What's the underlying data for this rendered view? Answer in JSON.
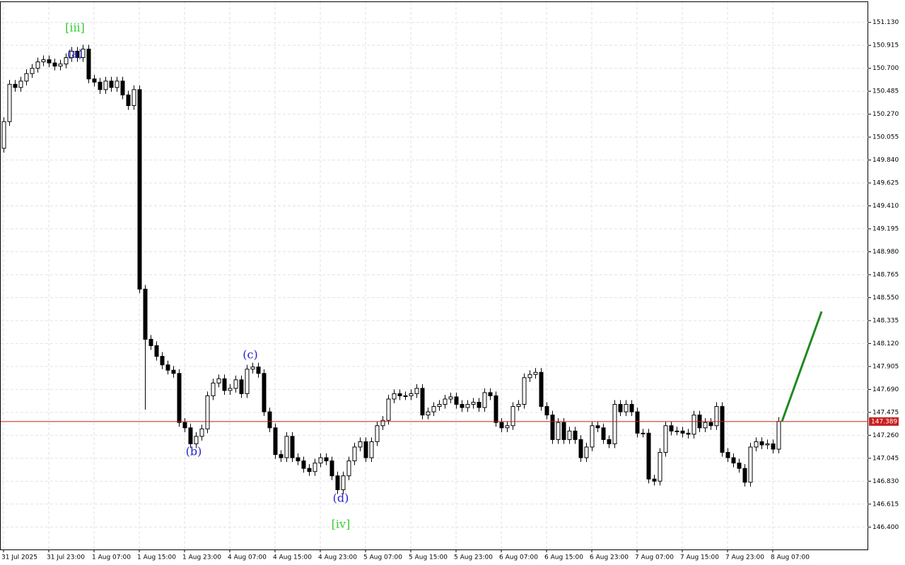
{
  "chart_data": {
    "type": "candlestick",
    "categories": [
      "31 Jul 2025",
      null,
      null,
      null,
      null,
      null,
      null,
      null,
      "31 Jul 23:00",
      null,
      null,
      null,
      null,
      null,
      null,
      null,
      "1 Aug 07:00",
      null,
      null,
      null,
      null,
      null,
      null,
      null,
      "1 Aug 15:00",
      null,
      null,
      null,
      null,
      null,
      null,
      null,
      "1 Aug 23:00",
      null,
      null,
      null,
      null,
      null,
      null,
      null,
      "4 Aug 07:00",
      null,
      null,
      null,
      null,
      null,
      null,
      null,
      "4 Aug 15:00",
      null,
      null,
      null,
      null,
      null,
      null,
      null,
      "4 Aug 23:00",
      null,
      null,
      null,
      null,
      null,
      null,
      null,
      "5 Aug 07:00",
      null,
      null,
      null,
      null,
      null,
      null,
      null,
      "5 Aug 15:00",
      null,
      null,
      null,
      null,
      null,
      null,
      null,
      "5 Aug 23:00",
      null,
      null,
      null,
      null,
      null,
      null,
      null,
      "6 Aug 07:00",
      null,
      null,
      null,
      null,
      null,
      null,
      null,
      "6 Aug 15:00",
      null,
      null,
      null,
      null,
      null,
      null,
      null,
      "6 Aug 23:00",
      null,
      null,
      null,
      null,
      null,
      null,
      null,
      "7 Aug 07:00",
      null,
      null,
      null,
      null,
      null,
      null,
      null,
      "7 Aug 15:00",
      null,
      null,
      null,
      null,
      null,
      null,
      null,
      "7 Aug 23:00",
      null,
      null,
      null,
      null,
      null,
      null,
      null,
      "8 Aug 07:00",
      null
    ],
    "open": [
      149.95,
      150.2,
      150.55,
      150.52,
      150.58,
      150.65,
      150.7,
      150.76,
      150.78,
      150.75,
      150.72,
      150.74,
      150.8,
      150.86,
      150.8,
      150.88,
      150.6,
      150.57,
      150.5,
      150.58,
      150.52,
      150.58,
      150.45,
      150.35,
      150.5,
      148.63,
      148.16,
      148.1,
      148.0,
      147.92,
      147.87,
      147.84,
      147.38,
      147.33,
      147.18,
      147.25,
      147.32,
      147.63,
      147.75,
      147.79,
      147.68,
      147.7,
      147.78,
      147.65,
      147.88,
      147.9,
      147.84,
      147.48,
      147.33,
      147.08,
      147.05,
      147.25,
      147.05,
      147.02,
      146.95,
      146.92,
      147.0,
      147.05,
      147.02,
      146.88,
      146.75,
      146.88,
      147.02,
      147.15,
      147.2,
      147.05,
      147.2,
      147.35,
      147.4,
      147.6,
      147.65,
      147.63,
      147.63,
      147.65,
      147.7,
      147.45,
      147.48,
      147.53,
      147.55,
      147.6,
      147.62,
      147.55,
      147.52,
      147.55,
      147.57,
      147.52,
      147.66,
      147.63,
      147.38,
      147.33,
      147.35,
      147.53,
      147.55,
      147.8,
      147.83,
      147.85,
      147.53,
      147.45,
      147.22,
      147.38,
      147.22,
      147.3,
      147.22,
      147.05,
      147.15,
      147.35,
      147.33,
      147.22,
      147.18,
      147.55,
      147.48,
      147.55,
      147.48,
      147.28,
      147.28,
      146.85,
      146.83,
      147.1,
      147.35,
      147.3,
      147.3,
      147.28,
      147.27,
      147.45,
      147.33,
      147.38,
      147.35,
      147.53,
      147.1,
      147.05,
      147.0,
      146.95,
      146.82,
      147.15,
      147.2,
      147.17,
      147.18,
      147.13
    ],
    "high": [
      150.24,
      150.59,
      150.59,
      150.62,
      150.69,
      150.74,
      150.8,
      150.82,
      150.82,
      150.79,
      150.78,
      150.84,
      150.9,
      150.9,
      150.92,
      150.92,
      150.64,
      150.61,
      150.62,
      150.62,
      150.62,
      150.62,
      150.49,
      150.54,
      150.54,
      148.67,
      148.2,
      148.14,
      148.04,
      147.96,
      147.91,
      147.88,
      147.42,
      147.37,
      147.29,
      147.36,
      147.67,
      147.79,
      147.83,
      147.83,
      147.74,
      147.82,
      147.82,
      147.92,
      147.94,
      147.94,
      147.88,
      147.52,
      147.37,
      147.12,
      147.29,
      147.29,
      147.09,
      147.06,
      146.99,
      147.04,
      147.09,
      147.09,
      147.06,
      146.92,
      146.92,
      147.06,
      147.19,
      147.24,
      147.24,
      147.24,
      147.39,
      147.44,
      147.64,
      147.69,
      147.69,
      147.67,
      147.69,
      147.74,
      147.74,
      147.52,
      147.57,
      147.59,
      147.64,
      147.66,
      147.66,
      147.59,
      147.59,
      147.61,
      147.61,
      147.7,
      147.7,
      147.67,
      147.42,
      147.39,
      147.57,
      147.59,
      147.84,
      147.87,
      147.89,
      147.89,
      147.57,
      147.49,
      147.42,
      147.42,
      147.34,
      147.34,
      147.26,
      147.19,
      147.39,
      147.39,
      147.37,
      147.26,
      147.59,
      147.59,
      147.59,
      147.59,
      147.52,
      147.32,
      147.32,
      146.89,
      147.14,
      147.39,
      147.39,
      147.34,
      147.34,
      147.32,
      147.49,
      147.49,
      147.42,
      147.42,
      147.57,
      147.57,
      147.14,
      147.09,
      147.04,
      146.99,
      147.19,
      147.24,
      147.24,
      147.22,
      147.22,
      147.43
    ],
    "low": [
      149.91,
      150.16,
      150.48,
      150.48,
      150.54,
      150.61,
      150.66,
      150.72,
      150.71,
      150.68,
      150.68,
      150.7,
      150.76,
      150.76,
      150.76,
      150.56,
      150.53,
      150.46,
      150.46,
      150.48,
      150.48,
      150.41,
      150.31,
      150.31,
      148.59,
      147.5,
      148.06,
      147.96,
      147.88,
      147.83,
      147.8,
      147.34,
      147.29,
      147.14,
      147.14,
      147.21,
      147.28,
      147.59,
      147.71,
      147.64,
      147.64,
      147.66,
      147.61,
      147.61,
      147.84,
      147.8,
      147.44,
      147.29,
      147.04,
      147.01,
      147.01,
      147.01,
      146.98,
      146.91,
      146.88,
      146.88,
      146.96,
      146.98,
      146.84,
      146.71,
      146.71,
      146.84,
      146.98,
      147.11,
      147.01,
      147.01,
      147.16,
      147.31,
      147.36,
      147.56,
      147.59,
      147.59,
      147.59,
      147.61,
      147.41,
      147.41,
      147.44,
      147.49,
      147.51,
      147.56,
      147.51,
      147.48,
      147.48,
      147.51,
      147.48,
      147.48,
      147.59,
      147.34,
      147.29,
      147.29,
      147.31,
      147.49,
      147.51,
      147.76,
      147.79,
      147.49,
      147.41,
      147.18,
      147.18,
      147.18,
      147.18,
      147.18,
      147.01,
      147.01,
      147.11,
      147.29,
      147.18,
      147.14,
      147.14,
      147.44,
      147.44,
      147.44,
      147.24,
      147.24,
      146.81,
      146.79,
      146.79,
      147.06,
      147.26,
      147.26,
      147.24,
      147.23,
      147.23,
      147.29,
      147.29,
      147.31,
      147.31,
      147.06,
      147.01,
      146.96,
      146.91,
      146.78,
      146.78,
      147.11,
      147.13,
      147.13,
      147.09,
      147.09
    ],
    "close": [
      150.2,
      150.55,
      150.52,
      150.58,
      150.65,
      150.7,
      150.76,
      150.78,
      150.75,
      150.72,
      150.74,
      150.8,
      150.86,
      150.8,
      150.88,
      150.6,
      150.57,
      150.5,
      150.58,
      150.52,
      150.58,
      150.45,
      150.35,
      150.5,
      148.63,
      148.16,
      148.1,
      148.0,
      147.92,
      147.87,
      147.84,
      147.38,
      147.33,
      147.18,
      147.25,
      147.32,
      147.63,
      147.75,
      147.79,
      147.68,
      147.7,
      147.78,
      147.65,
      147.88,
      147.9,
      147.84,
      147.48,
      147.33,
      147.08,
      147.05,
      147.25,
      147.05,
      147.02,
      146.95,
      146.92,
      147.0,
      147.05,
      147.02,
      146.88,
      146.75,
      146.88,
      147.02,
      147.15,
      147.2,
      147.05,
      147.2,
      147.35,
      147.4,
      147.6,
      147.65,
      147.63,
      147.63,
      147.65,
      147.7,
      147.45,
      147.48,
      147.53,
      147.55,
      147.6,
      147.62,
      147.55,
      147.52,
      147.55,
      147.57,
      147.52,
      147.66,
      147.63,
      147.38,
      147.33,
      147.35,
      147.53,
      147.55,
      147.8,
      147.83,
      147.85,
      147.53,
      147.45,
      147.22,
      147.38,
      147.22,
      147.3,
      147.22,
      147.05,
      147.15,
      147.35,
      147.33,
      147.22,
      147.18,
      147.55,
      147.48,
      147.55,
      147.48,
      147.28,
      147.28,
      146.85,
      146.83,
      147.1,
      147.35,
      147.3,
      147.3,
      147.28,
      147.27,
      147.45,
      147.33,
      147.38,
      147.35,
      147.53,
      147.1,
      147.05,
      147.0,
      146.95,
      146.82,
      147.15,
      147.2,
      147.17,
      147.18,
      147.13,
      147.39
    ],
    "up_color": "#ffffff",
    "down_color": "#000000",
    "outline_color": "#000000",
    "ylim": [
      146.19,
      151.32
    ],
    "yticks": [
      {
        "value": 151.13,
        "label": "151.130"
      },
      150.915,
      {
        "value": 150.7,
        "label": "150.700"
      },
      150.485,
      {
        "value": 150.27,
        "label": "150.270"
      },
      150.055,
      {
        "value": 149.84,
        "label": "149.840"
      },
      149.625,
      {
        "value": 149.41,
        "label": "149.410"
      },
      149.195,
      {
        "value": 148.98,
        "label": "148.980"
      },
      148.765,
      {
        "value": 148.55,
        "label": "148.550"
      },
      148.335,
      {
        "value": 148.12,
        "label": "148.120"
      },
      147.905,
      {
        "value": 147.69,
        "label": "147.690"
      },
      147.475,
      {
        "value": 147.26,
        "label": "147.260"
      },
      147.045,
      {
        "value": 146.83,
        "label": "146.830"
      },
      146.615,
      {
        "value": 146.4,
        "label": "146.400"
      }
    ],
    "grid": true,
    "current_price": 147.389,
    "current_price_color": "#c81e1e",
    "forecast": {
      "values": [
        147.39,
        148.42
      ],
      "color": "#1e8a1e"
    },
    "annotations": [
      "[iii]",
      "(a)",
      "(b)",
      "(c)",
      "(d)",
      "[iv]"
    ]
  }
}
